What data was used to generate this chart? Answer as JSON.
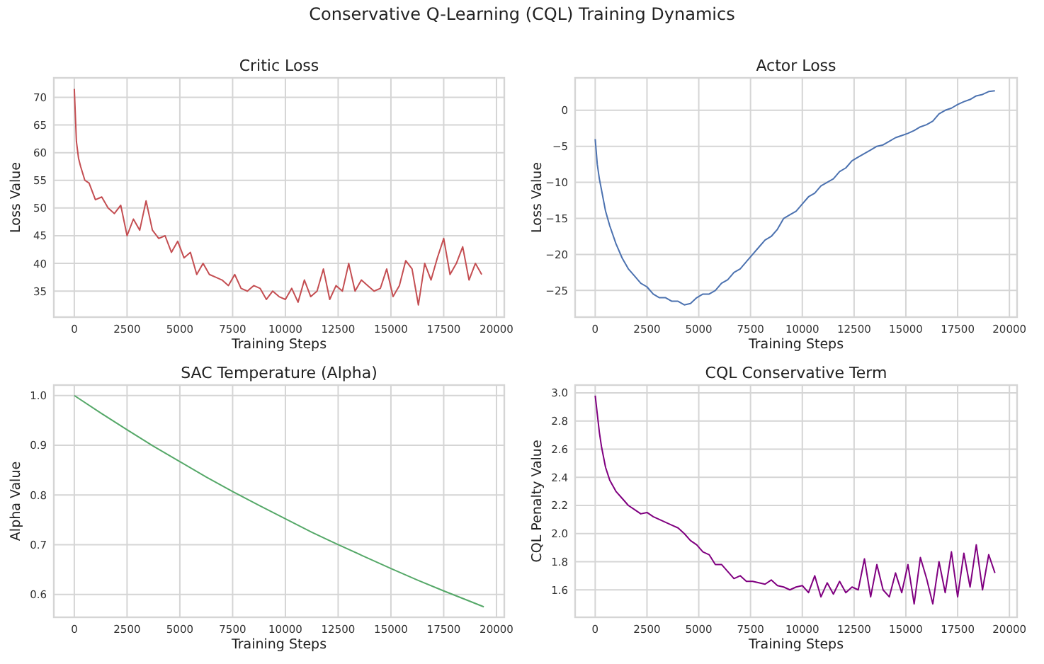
{
  "chart_data": [
    {
      "type": "line",
      "title": "Critic Loss",
      "annotations": [
        "Conservative Q-Learning (CQL) Training Dynamics"
      ],
      "xlabel": "Training Steps",
      "ylabel": "Loss Value",
      "grid": true,
      "xlim": [
        -970,
        20370
      ],
      "xticks": [
        0,
        2500,
        5000,
        7500,
        10000,
        12500,
        15000,
        17500,
        20000
      ],
      "ylim": [
        30.3,
        73.5
      ],
      "yticks": [
        35,
        40,
        45,
        50,
        55,
        60,
        65,
        70
      ],
      "x": [
        0,
        100,
        200,
        300,
        500,
        700,
        1000,
        1300,
        1600,
        1900,
        2200,
        2500,
        2800,
        3100,
        3400,
        3700,
        4000,
        4300,
        4600,
        4900,
        5200,
        5500,
        5800,
        6100,
        6400,
        6700,
        7000,
        7300,
        7600,
        7900,
        8200,
        8500,
        8800,
        9100,
        9400,
        9700,
        10000,
        10300,
        10600,
        10900,
        11200,
        11500,
        11800,
        12100,
        12400,
        12700,
        13000,
        13300,
        13600,
        13900,
        14200,
        14500,
        14800,
        15100,
        15400,
        15700,
        16000,
        16300,
        16600,
        16900,
        17200,
        17500,
        17800,
        18100,
        18400,
        18700,
        19000,
        19300
      ],
      "series": [
        {
          "color": "#c44e52",
          "values": [
            71.5,
            62,
            59,
            57.5,
            55,
            54.5,
            51.5,
            52,
            50,
            49,
            50.5,
            45,
            48,
            46,
            51.3,
            46,
            44.5,
            45,
            42,
            44,
            41,
            42,
            38,
            40,
            38,
            37.5,
            37,
            36,
            38,
            35.5,
            35,
            36,
            35.5,
            33.5,
            35,
            34,
            33.5,
            35.5,
            33,
            37,
            34,
            35,
            39,
            33.5,
            36,
            35,
            40,
            35,
            37,
            36,
            35,
            35.5,
            39,
            34,
            36,
            40.5,
            39,
            32.5,
            40,
            37,
            41,
            44.5,
            38,
            40,
            43,
            37,
            40,
            38
          ]
        }
      ]
    },
    {
      "type": "line",
      "title": "Actor Loss",
      "xlabel": "Training Steps",
      "ylabel": "Loss Value",
      "grid": true,
      "xlim": [
        -970,
        20370
      ],
      "xticks": [
        0,
        2500,
        5000,
        7500,
        10000,
        12500,
        15000,
        17500,
        20000
      ],
      "ylim": [
        -28.7,
        4.5
      ],
      "yticks": [
        {
          "value": -25,
          "label": "−25"
        },
        {
          "value": -20,
          "label": "−20"
        },
        {
          "value": -15,
          "label": "−15"
        },
        {
          "value": -10,
          "label": "−10"
        },
        {
          "value": -5,
          "label": "−5"
        },
        0
      ],
      "x": [
        0,
        100,
        200,
        300,
        500,
        700,
        1000,
        1300,
        1600,
        1900,
        2200,
        2500,
        2800,
        3100,
        3400,
        3700,
        4000,
        4300,
        4600,
        4900,
        5200,
        5500,
        5800,
        6100,
        6400,
        6700,
        7000,
        7300,
        7600,
        7900,
        8200,
        8500,
        8800,
        9100,
        9400,
        9700,
        10000,
        10300,
        10600,
        10900,
        11200,
        11500,
        11800,
        12100,
        12400,
        12700,
        13000,
        13300,
        13600,
        13900,
        14200,
        14500,
        14800,
        15100,
        15400,
        15700,
        16000,
        16300,
        16600,
        16900,
        17200,
        17500,
        17800,
        18100,
        18400,
        18700,
        19000,
        19300
      ],
      "series": [
        {
          "color": "#4c72b0",
          "values": [
            -4,
            -7.5,
            -9.5,
            -11,
            -14,
            -16,
            -18.5,
            -20.5,
            -22,
            -23,
            -24,
            -24.5,
            -25.5,
            -26,
            -26,
            -26.5,
            -26.5,
            -27,
            -26.8,
            -26,
            -25.5,
            -25.5,
            -25,
            -24,
            -23.5,
            -22.5,
            -22,
            -21,
            -20,
            -19,
            -18,
            -17.5,
            -16.5,
            -15,
            -14.5,
            -14,
            -13,
            -12,
            -11.5,
            -10.5,
            -10,
            -9.5,
            -8.5,
            -8,
            -7,
            -6.5,
            -6,
            -5.5,
            -5,
            -4.8,
            -4.3,
            -3.8,
            -3.5,
            -3.2,
            -2.8,
            -2.3,
            -2,
            -1.5,
            -0.5,
            0,
            0.3,
            0.8,
            1.2,
            1.5,
            2,
            2.2,
            2.6,
            2.7
          ]
        }
      ]
    },
    {
      "type": "line",
      "title": "SAC Temperature (Alpha)",
      "xlabel": "Training Steps",
      "ylabel": "Alpha Value",
      "grid": true,
      "xlim": [
        -970,
        20370
      ],
      "xticks": [
        0,
        2500,
        5000,
        7500,
        10000,
        12500,
        15000,
        17500,
        20000
      ],
      "ylim": [
        0.554,
        1.021
      ],
      "yticks": [
        {
          "value": 0.6,
          "label": "0.6"
        },
        {
          "value": 0.7,
          "label": "0.7"
        },
        {
          "value": 0.8,
          "label": "0.8"
        },
        {
          "value": 0.9,
          "label": "0.9"
        },
        {
          "value": 1,
          "label": "1.0"
        }
      ],
      "x": [
        0,
        1250,
        2500,
        3750,
        5000,
        6250,
        7500,
        8750,
        10000,
        11250,
        12500,
        13750,
        15000,
        16250,
        17500,
        18750,
        19400
      ],
      "series": [
        {
          "color": "#55a868",
          "values": [
            1,
            0.965,
            0.931,
            0.898,
            0.867,
            0.836,
            0.807,
            0.779,
            0.752,
            0.725,
            0.7,
            0.676,
            0.652,
            0.629,
            0.607,
            0.586,
            0.575
          ]
        }
      ]
    },
    {
      "type": "line",
      "title": "CQL Conservative Term",
      "xlabel": "Training Steps",
      "ylabel": "CQL Penalty Value",
      "grid": true,
      "xlim": [
        -970,
        20370
      ],
      "xticks": [
        0,
        2500,
        5000,
        7500,
        10000,
        12500,
        15000,
        17500,
        20000
      ],
      "ylim": [
        1.405,
        3.055
      ],
      "yticks": [
        {
          "value": 1.6,
          "label": "1.6"
        },
        {
          "value": 1.8,
          "label": "1.8"
        },
        {
          "value": 2,
          "label": "2.0"
        },
        {
          "value": 2.2,
          "label": "2.2"
        },
        {
          "value": 2.4,
          "label": "2.4"
        },
        {
          "value": 2.6,
          "label": "2.6"
        },
        {
          "value": 2.8,
          "label": "2.8"
        },
        {
          "value": 3,
          "label": "3.0"
        }
      ],
      "x": [
        0,
        100,
        200,
        300,
        500,
        700,
        1000,
        1300,
        1600,
        1900,
        2200,
        2500,
        2800,
        3100,
        3400,
        3700,
        4000,
        4300,
        4600,
        4900,
        5200,
        5500,
        5800,
        6100,
        6400,
        6700,
        7000,
        7300,
        7600,
        7900,
        8200,
        8500,
        8800,
        9100,
        9400,
        9700,
        10000,
        10300,
        10600,
        10900,
        11200,
        11500,
        11800,
        12100,
        12400,
        12700,
        13000,
        13300,
        13600,
        13900,
        14200,
        14500,
        14800,
        15100,
        15400,
        15700,
        16000,
        16300,
        16600,
        16900,
        17200,
        17500,
        17800,
        18100,
        18400,
        18700,
        19000,
        19300
      ],
      "series": [
        {
          "color": "#800080",
          "values": [
            2.98,
            2.85,
            2.72,
            2.62,
            2.47,
            2.38,
            2.3,
            2.25,
            2.2,
            2.17,
            2.14,
            2.15,
            2.12,
            2.1,
            2.08,
            2.06,
            2.04,
            2,
            1.95,
            1.92,
            1.87,
            1.85,
            1.78,
            1.78,
            1.73,
            1.68,
            1.7,
            1.66,
            1.66,
            1.65,
            1.64,
            1.67,
            1.63,
            1.62,
            1.6,
            1.62,
            1.63,
            1.58,
            1.7,
            1.55,
            1.65,
            1.57,
            1.66,
            1.58,
            1.62,
            1.6,
            1.82,
            1.55,
            1.78,
            1.6,
            1.55,
            1.72,
            1.58,
            1.78,
            1.5,
            1.83,
            1.68,
            1.5,
            1.8,
            1.58,
            1.87,
            1.55,
            1.86,
            1.62,
            1.92,
            1.6,
            1.85,
            1.72
          ]
        }
      ]
    }
  ]
}
